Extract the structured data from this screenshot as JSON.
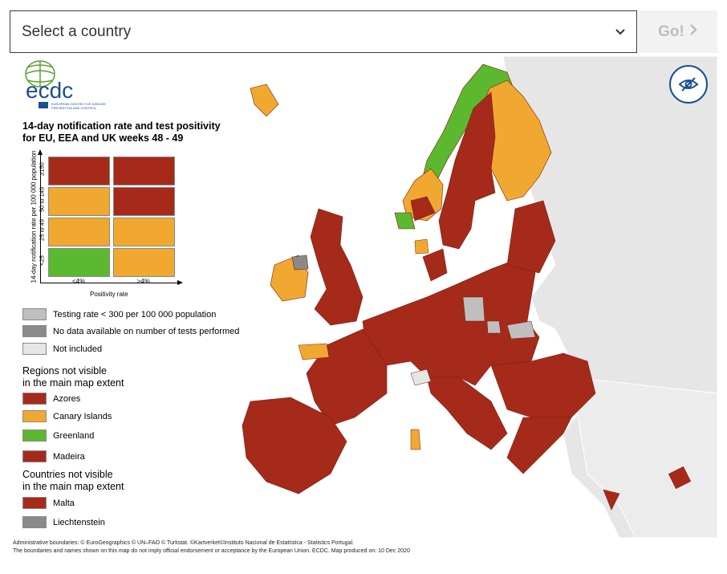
{
  "selector": {
    "placeholder": "Select a country",
    "go_label": "Go!"
  },
  "logo": {
    "wordmark": "ecdc",
    "org_name": "EUROPEAN CENTRE FOR DISEASE PREVENTION AND CONTROL"
  },
  "legend": {
    "title_line1": "14-day notification rate and test positivity",
    "title_line2": "for EU, EEA and UK weeks 48 - 49",
    "y_axis_label": "14-day notification rate per 100 000 population",
    "y_ticks": [
      "≥150",
      "50 to 149",
      "25 to 49",
      "<25"
    ],
    "x_ticks": [
      "<4%",
      "≥4%"
    ],
    "x_axis_label": "Positivity rate",
    "matrix": [
      [
        "#a52a1a",
        "#a52a1a"
      ],
      [
        "#f0a830",
        "#a52a1a"
      ],
      [
        "#f0a830",
        "#f0a830"
      ],
      [
        "#5cb82e",
        "#f0a830"
      ]
    ],
    "status_items": [
      {
        "label": "Testing rate < 300 per 100 000 population",
        "color": "#bfbfbf"
      },
      {
        "label": "No data available on number of tests performed",
        "color": "#8a8a8a"
      },
      {
        "label": "Not included",
        "color": "#e6e6e6"
      }
    ],
    "regions_heading_1": "Regions not visible",
    "regions_heading_2": "in the main map extent",
    "regions": [
      {
        "label": "Azores",
        "color": "#a52a1a"
      },
      {
        "label": "Canary Islands",
        "color": "#f0a830"
      },
      {
        "label": "Greenland",
        "color": "#5cb82e"
      },
      {
        "label": "Madeira",
        "color": "#a52a1a"
      }
    ],
    "countries_heading_1": "Countries not visible",
    "countries_heading_2": "in the main map extent",
    "countries": [
      {
        "label": "Malta",
        "color": "#a52a1a"
      },
      {
        "label": "Liechtenstein",
        "color": "#8a8a8a"
      }
    ]
  },
  "attribution": {
    "line1": "Administrative boundaries: © EuroGeographics © UN–FAO © Turkstat. ©Kartverket©Instituto Nacional de Estatística - Statistics Portugal.",
    "line2": "The boundaries and names shown on this map do not imply official endorsement or acceptance by the European Union. ECDC. Map produced on: 10 Dec 2020"
  },
  "colors": {
    "red": "#a52a1a",
    "orange": "#f0a830",
    "green": "#5cb82e",
    "grey_low_testing": "#bfbfbf",
    "grey_no_data": "#8a8a8a",
    "not_included": "#e6e6e6",
    "accent_blue": "#1a4f93"
  }
}
